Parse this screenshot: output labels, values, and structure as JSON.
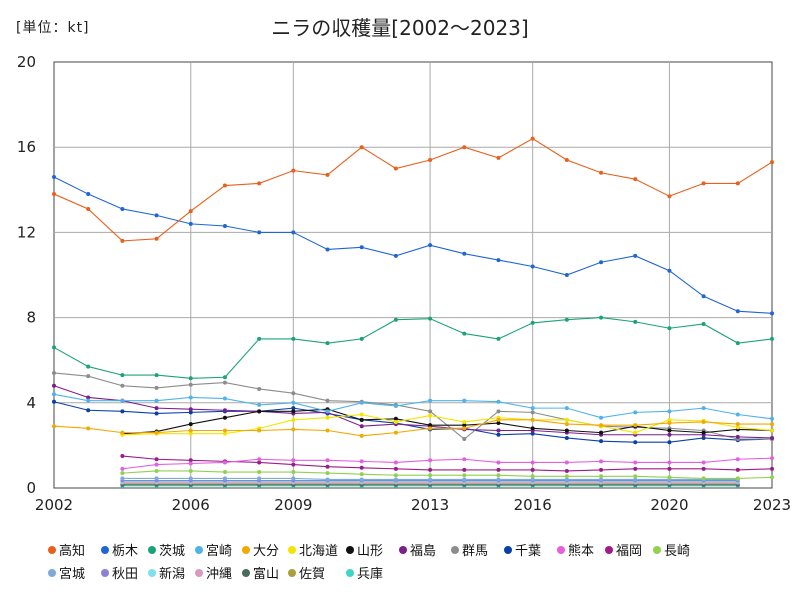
{
  "chart_data": {
    "type": "line",
    "unit_label": "[単位：kt]",
    "title": "ニラの収穫量[2002～2023]",
    "x": [
      2002,
      2003,
      2004,
      2005,
      2006,
      2007,
      2008,
      2009,
      2010,
      2011,
      2012,
      2013,
      2014,
      2015,
      2016,
      2017,
      2018,
      2019,
      2020,
      2021,
      2022,
      2023
    ],
    "x_ticks": [
      2002,
      2006,
      2009,
      2013,
      2016,
      2020,
      2023
    ],
    "y_ticks": [
      0,
      4,
      8,
      12,
      16,
      20
    ],
    "ylim": [
      0,
      20
    ],
    "grid": true,
    "legend_position": "bottom",
    "series": [
      {
        "name": "高知",
        "color": "#e8601c",
        "values": [
          13.8,
          13.1,
          11.6,
          11.7,
          13.0,
          14.2,
          14.3,
          14.9,
          14.7,
          16.0,
          15.0,
          15.4,
          16.0,
          15.5,
          16.4,
          15.4,
          14.8,
          14.5,
          13.7,
          14.3,
          14.3,
          15.3
        ]
      },
      {
        "name": "栃木",
        "color": "#1f65d6",
        "values": [
          14.6,
          13.8,
          13.1,
          12.8,
          12.4,
          12.3,
          12.0,
          12.0,
          11.2,
          11.3,
          10.9,
          11.4,
          11.0,
          10.7,
          10.4,
          10.0,
          10.6,
          10.9,
          10.2,
          9.0,
          8.3,
          8.2
        ]
      },
      {
        "name": "茨城",
        "color": "#1aa37a",
        "values": [
          6.6,
          5.7,
          5.3,
          5.3,
          5.15,
          5.2,
          7.0,
          7.0,
          6.8,
          7.0,
          7.9,
          7.95,
          7.25,
          7.0,
          7.75,
          7.9,
          8.0,
          7.8,
          7.5,
          7.7,
          6.8,
          7.0
        ]
      },
      {
        "name": "宮崎",
        "color": "#4fb3e8",
        "values": [
          4.4,
          4.1,
          4.1,
          4.1,
          4.25,
          4.2,
          3.9,
          4.0,
          3.6,
          4.0,
          3.85,
          4.1,
          4.1,
          4.05,
          3.75,
          3.75,
          3.3,
          3.55,
          3.6,
          3.75,
          3.45,
          3.25
        ]
      },
      {
        "name": "大分",
        "color": "#f2a900",
        "values": [
          2.9,
          2.8,
          2.6,
          2.6,
          2.7,
          2.7,
          2.7,
          2.75,
          2.7,
          2.45,
          2.6,
          2.8,
          2.8,
          3.2,
          3.2,
          3.0,
          2.95,
          2.95,
          3.05,
          3.1,
          3.0,
          3.0
        ]
      },
      {
        "name": "北海道",
        "color": "#f5e400",
        "values": [
          null,
          null,
          2.5,
          2.55,
          2.55,
          2.55,
          2.8,
          3.2,
          3.3,
          3.45,
          3.1,
          3.4,
          3.1,
          3.3,
          3.2,
          3.2,
          2.9,
          2.6,
          3.2,
          3.15,
          2.85,
          2.7
        ]
      },
      {
        "name": "山形",
        "color": "#111111",
        "values": [
          null,
          null,
          2.55,
          2.65,
          3.0,
          3.3,
          3.6,
          3.6,
          3.7,
          3.2,
          3.25,
          2.95,
          2.95,
          3.05,
          2.8,
          2.7,
          2.6,
          2.9,
          2.7,
          2.6,
          2.75,
          2.7
        ]
      },
      {
        "name": "福島",
        "color": "#7a1f8c",
        "values": [
          4.8,
          4.25,
          4.1,
          3.75,
          3.7,
          3.65,
          3.6,
          3.5,
          3.55,
          2.9,
          3.0,
          2.9,
          2.75,
          2.7,
          2.7,
          2.6,
          2.5,
          2.5,
          2.5,
          2.5,
          2.4,
          2.35
        ]
      },
      {
        "name": "群馬",
        "color": "#8c8c8c",
        "values": [
          5.4,
          5.25,
          4.8,
          4.7,
          4.85,
          4.95,
          4.65,
          4.45,
          4.1,
          4.05,
          3.9,
          3.6,
          2.3,
          3.6,
          3.55,
          3.2,
          2.9,
          2.85,
          2.8,
          2.7,
          2.3,
          2.3
        ]
      },
      {
        "name": "千葉",
        "color": "#0b3fa8",
        "values": [
          4.05,
          3.65,
          3.6,
          3.5,
          3.55,
          3.6,
          3.6,
          3.75,
          3.5,
          3.2,
          3.05,
          2.75,
          2.8,
          2.5,
          2.55,
          2.35,
          2.2,
          2.15,
          2.15,
          2.35,
          2.25,
          2.3
        ]
      },
      {
        "name": "熊本",
        "color": "#e35fe3",
        "values": [
          null,
          null,
          0.9,
          1.1,
          1.15,
          1.2,
          1.35,
          1.3,
          1.3,
          1.25,
          1.2,
          1.3,
          1.35,
          1.2,
          1.2,
          1.2,
          1.25,
          1.2,
          1.2,
          1.2,
          1.35,
          1.4
        ]
      },
      {
        "name": "福岡",
        "color": "#9c1c8a",
        "values": [
          null,
          null,
          1.5,
          1.35,
          1.3,
          1.25,
          1.2,
          1.1,
          1.0,
          0.95,
          0.9,
          0.85,
          0.85,
          0.85,
          0.85,
          0.8,
          0.85,
          0.9,
          0.9,
          0.9,
          0.85,
          0.9
        ]
      },
      {
        "name": "長崎",
        "color": "#92d050",
        "values": [
          null,
          null,
          0.7,
          0.8,
          0.8,
          0.75,
          0.75,
          0.75,
          0.7,
          0.65,
          0.6,
          0.6,
          0.6,
          0.6,
          0.55,
          0.55,
          0.55,
          0.55,
          0.5,
          0.45,
          0.45,
          0.5
        ]
      },
      {
        "name": "宮城",
        "color": "#7fa9d9",
        "values": [
          null,
          null,
          0.45,
          0.45,
          0.45,
          0.45,
          0.45,
          0.45,
          0.4,
          0.4,
          0.4,
          0.4,
          0.4,
          0.4,
          0.4,
          0.4,
          0.4,
          0.4,
          0.4,
          0.4,
          0.4,
          null
        ]
      },
      {
        "name": "秋田",
        "color": "#8f7fd6",
        "values": [
          null,
          null,
          0.35,
          0.35,
          0.35,
          0.35,
          0.35,
          0.35,
          0.35,
          0.35,
          0.35,
          0.35,
          0.35,
          0.35,
          0.35,
          0.35,
          0.35,
          0.35,
          0.35,
          0.35,
          0.35,
          null
        ]
      },
      {
        "name": "新潟",
        "color": "#7fe0f0",
        "values": [
          null,
          null,
          0.3,
          0.3,
          0.3,
          0.3,
          0.3,
          0.3,
          0.3,
          0.3,
          0.3,
          0.3,
          0.3,
          0.3,
          0.3,
          0.3,
          0.3,
          0.3,
          0.3,
          0.3,
          0.3,
          null
        ]
      },
      {
        "name": "沖縄",
        "color": "#d99ac0",
        "values": [
          null,
          null,
          0.25,
          0.25,
          0.25,
          0.25,
          0.25,
          0.25,
          0.25,
          0.25,
          0.25,
          0.25,
          0.25,
          0.25,
          0.25,
          0.25,
          0.25,
          0.25,
          0.25,
          0.25,
          0.25,
          null
        ]
      },
      {
        "name": "富山",
        "color": "#4a6b5a",
        "values": [
          null,
          null,
          0.15,
          0.15,
          0.15,
          0.15,
          0.15,
          0.15,
          0.15,
          0.15,
          0.15,
          0.15,
          0.15,
          0.15,
          0.15,
          0.15,
          0.15,
          0.15,
          0.15,
          0.15,
          0.15,
          null
        ]
      },
      {
        "name": "佐賀",
        "color": "#a9a03c",
        "values": [
          null,
          null,
          0.2,
          0.2,
          0.2,
          0.2,
          0.2,
          0.2,
          0.2,
          0.2,
          0.2,
          0.2,
          0.2,
          0.2,
          0.2,
          0.2,
          0.2,
          0.2,
          0.2,
          0.2,
          0.2,
          null
        ]
      },
      {
        "name": "兵庫",
        "color": "#3fd6c8",
        "values": [
          null,
          null,
          0.1,
          0.1,
          0.1,
          0.1,
          0.1,
          0.1,
          0.1,
          0.1,
          0.1,
          0.1,
          0.1,
          0.1,
          0.1,
          0.1,
          0.1,
          0.1,
          0.1,
          0.1,
          0.1,
          null
        ]
      }
    ]
  }
}
